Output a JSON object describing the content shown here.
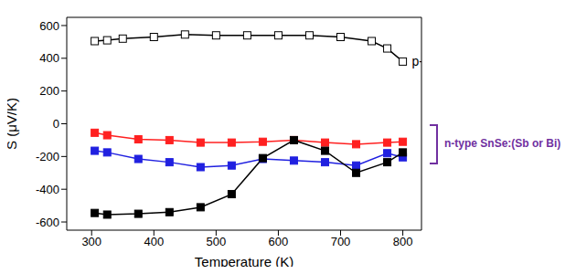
{
  "chart_data": {
    "type": "line",
    "x_label": "Temperature (K)",
    "y_label": "S (μV/K)",
    "xlim": [
      260,
      830
    ],
    "xticks": [
      300,
      400,
      500,
      600,
      700,
      800
    ],
    "ylim": [
      -650,
      650
    ],
    "yticks": [
      -600,
      -400,
      -200,
      0,
      200,
      400,
      600
    ],
    "grid": false,
    "annotations": [
      "n-type SnSe:(Sb or Bi)"
    ],
    "series": [
      {
        "name": "p-type SnSe",
        "color": "#000000",
        "marker": "square-open",
        "x": [
          305,
          325,
          350,
          400,
          450,
          500,
          550,
          600,
          650,
          700,
          750,
          775,
          800
        ],
        "values": [
          505,
          510,
          520,
          530,
          545,
          540,
          540,
          540,
          540,
          530,
          505,
          460,
          380
        ]
      },
      {
        "color": "#ff2020",
        "marker": "square",
        "x": [
          305,
          325,
          375,
          425,
          475,
          525,
          575,
          625,
          675,
          725,
          775,
          800
        ],
        "values": [
          -55,
          -70,
          -95,
          -100,
          -115,
          -115,
          -110,
          -100,
          -115,
          -125,
          -115,
          -110
        ]
      },
      {
        "color": "#2020e0",
        "marker": "square",
        "x": [
          305,
          325,
          375,
          425,
          475,
          525,
          575,
          625,
          675,
          725,
          775,
          800
        ],
        "values": [
          -165,
          -175,
          -215,
          -235,
          -265,
          -255,
          -215,
          -225,
          -235,
          -255,
          -180,
          -205
        ]
      },
      {
        "color": "#000000",
        "marker": "square",
        "x": [
          305,
          325,
          375,
          425,
          475,
          525,
          575,
          625,
          675,
          725,
          775,
          800
        ],
        "values": [
          -545,
          -555,
          -550,
          -540,
          -510,
          -430,
          -210,
          -100,
          -165,
          -300,
          -235,
          -175
        ]
      }
    ]
  }
}
